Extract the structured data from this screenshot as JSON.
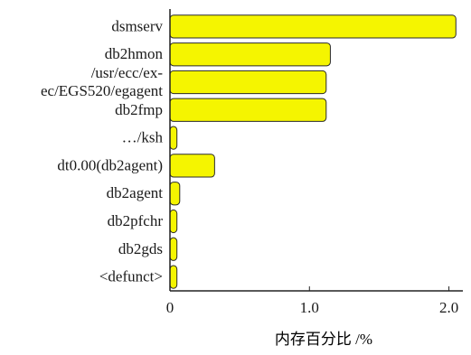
{
  "chart_data": {
    "type": "bar",
    "orientation": "horizontal",
    "categories": [
      "dsmserv",
      "db2hmon",
      "/usr/ecc/ex-ec/EGS520/egagent",
      "db2fmp",
      "…/ksh",
      "dt0.00(db2agent)",
      "db2agent",
      "db2pfchr",
      "db2gds",
      "<defunct>"
    ],
    "category_lines": [
      [
        "dsmserv"
      ],
      [
        "db2hmon"
      ],
      [
        "/usr/ecc/ex-",
        "ec/EGS520/egagent"
      ],
      [
        "db2fmp"
      ],
      [
        "…/ksh"
      ],
      [
        "dt0.00(db2agent)"
      ],
      [
        "db2agent"
      ],
      [
        "db2pfchr"
      ],
      [
        "db2gds"
      ],
      [
        "<defunct>"
      ]
    ],
    "values": [
      2.05,
      1.15,
      1.12,
      1.12,
      0.05,
      0.32,
      0.07,
      0.05,
      0.05,
      0.05
    ],
    "xlim": [
      0,
      2.1
    ],
    "xticks": [
      0,
      1.0,
      2.0
    ],
    "xtick_labels": [
      "0",
      "1.0",
      "2.0"
    ],
    "xlabel": "内存百分比 /%",
    "ylabel": "",
    "title": "",
    "grid": false,
    "legend": "none",
    "colors": {
      "bar_fill": "#f5f500",
      "bar_edge": "#2a2a2a",
      "axis": "#222222",
      "text": "#1a1a1a"
    }
  }
}
